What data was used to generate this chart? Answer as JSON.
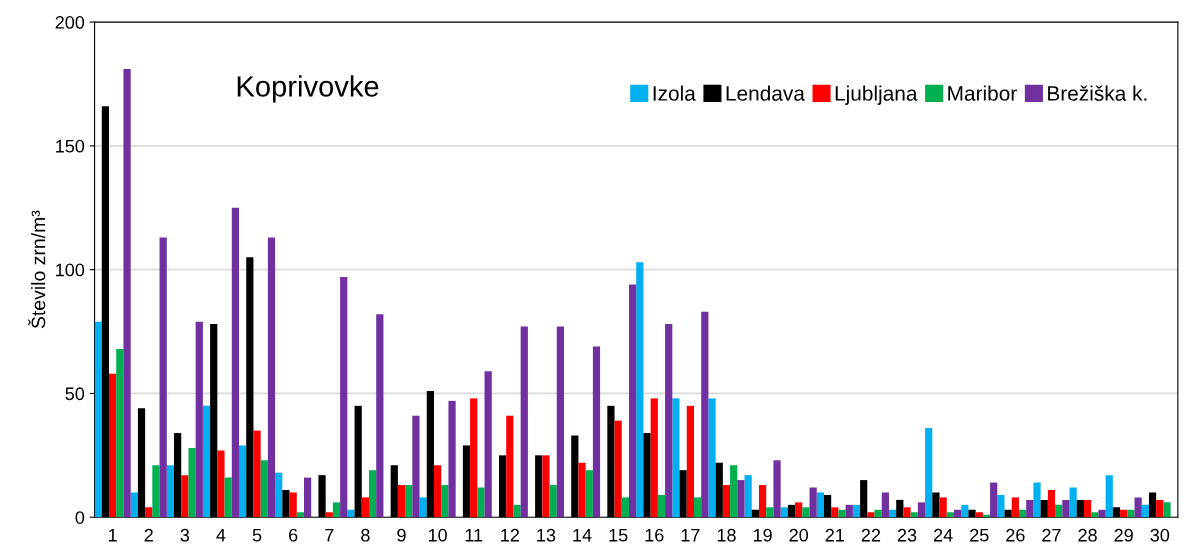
{
  "chart_data": {
    "type": "bar",
    "title": "Koprivovke",
    "ylabel": "Število zrn/m³",
    "categories": [
      "1",
      "2",
      "3",
      "4",
      "5",
      "6",
      "7",
      "8",
      "9",
      "10",
      "11",
      "12",
      "13",
      "14",
      "15",
      "16",
      "17",
      "18",
      "19",
      "20",
      "21",
      "22",
      "23",
      "24",
      "25",
      "26",
      "27",
      "28",
      "29",
      "30"
    ],
    "series": [
      {
        "name": "Izola",
        "color": "#00b0f0",
        "values": [
          79,
          10,
          21,
          45,
          29,
          18,
          0,
          3,
          0,
          8,
          0,
          0,
          0,
          0,
          0,
          103,
          48,
          48,
          17,
          4,
          10,
          5,
          3,
          36,
          5,
          9,
          14,
          12,
          17,
          5
        ]
      },
      {
        "name": "Lendava",
        "color": "#000000",
        "values": [
          166,
          44,
          34,
          78,
          105,
          11,
          17,
          45,
          21,
          51,
          29,
          25,
          25,
          33,
          45,
          34,
          19,
          22,
          3,
          5,
          9,
          15,
          7,
          10,
          3,
          3,
          7,
          7,
          4,
          10
        ]
      },
      {
        "name": "Ljubljana",
        "color": "#ff0000",
        "values": [
          58,
          4,
          17,
          27,
          35,
          10,
          2,
          8,
          13,
          21,
          48,
          41,
          25,
          22,
          39,
          48,
          45,
          13,
          13,
          6,
          4,
          2,
          4,
          8,
          2,
          8,
          11,
          7,
          3,
          7
        ]
      },
      {
        "name": "Maribor",
        "color": "#00b050",
        "values": [
          68,
          21,
          28,
          16,
          23,
          2,
          6,
          19,
          13,
          13,
          12,
          5,
          13,
          19,
          8,
          9,
          8,
          21,
          4,
          4,
          3,
          3,
          2,
          2,
          1,
          3,
          5,
          2,
          3,
          6
        ]
      },
      {
        "name": "Brežiška k.",
        "color": "#7030a0",
        "values": [
          181,
          113,
          79,
          125,
          113,
          16,
          97,
          82,
          41,
          47,
          59,
          77,
          77,
          69,
          94,
          78,
          83,
          15,
          23,
          12,
          5,
          10,
          6,
          3,
          14,
          7,
          7,
          3,
          8,
          null
        ]
      }
    ],
    "ylim": [
      0,
      200
    ],
    "yticks": [
      0,
      50,
      100,
      150,
      200
    ],
    "grid": "y",
    "legend": "top right"
  }
}
